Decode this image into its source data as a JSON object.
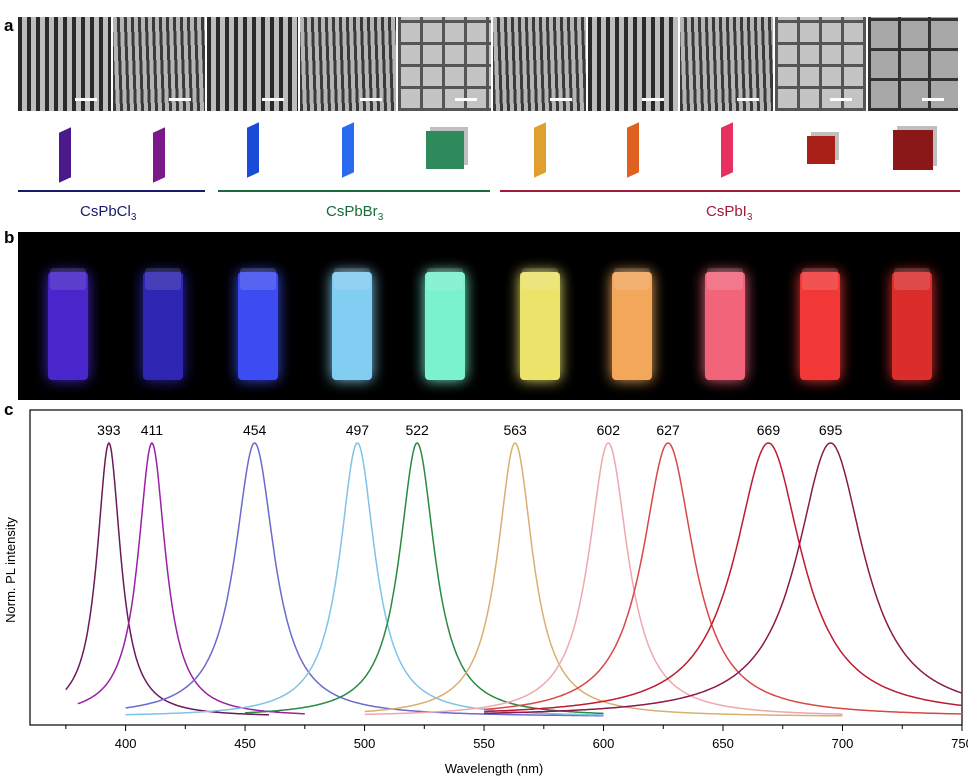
{
  "panel_labels": {
    "a": "a",
    "b": "b",
    "c": "c"
  },
  "panel_a": {
    "tem_images": [
      {
        "morphology": "nanoplatelets",
        "color": "#4a1a8a"
      },
      {
        "morphology": "nanoplatelets",
        "color": "#7a1a8a"
      },
      {
        "morphology": "nanoplatelets",
        "color": "#1a4ad8"
      },
      {
        "morphology": "nanoplatelets",
        "color": "#2a6af0"
      },
      {
        "morphology": "nanocubes",
        "color": "#2e8a5a"
      },
      {
        "morphology": "nanoplatelets",
        "color": "#e0a030"
      },
      {
        "morphology": "nanoplatelets",
        "color": "#e06020"
      },
      {
        "morphology": "nanoplatelets",
        "color": "#e83060"
      },
      {
        "morphology": "nanocubes",
        "color": "#a82018"
      },
      {
        "morphology": "nanocubes",
        "color": "#8a1818"
      }
    ],
    "groups": [
      {
        "name": "CsPbCl",
        "sub": "3",
        "color": "#1a1a6a"
      },
      {
        "name": "CsPbBr",
        "sub": "3",
        "color": "#1a6a3a"
      },
      {
        "name": "CsPbI",
        "sub": "3",
        "color": "#a01a3a"
      }
    ]
  },
  "panel_b": {
    "vial_colors": [
      "#5a30ff",
      "#3a30e0",
      "#4050ff",
      "#8ad8ff",
      "#80ffd8",
      "#f8f070",
      "#ffb060",
      "#ff6a80",
      "#ff3a3a",
      "#e83030"
    ]
  },
  "chart_data": {
    "type": "line",
    "xlabel": "Wavelength (nm)",
    "ylabel": "Norm. PL intensity",
    "xlim": [
      360,
      750
    ],
    "ylim": [
      0,
      1.1
    ],
    "xticks": [
      400,
      450,
      500,
      550,
      600,
      650,
      700,
      750
    ],
    "grid": false,
    "series": [
      {
        "peak": 393,
        "fwhm": 12,
        "range": [
          375,
          460
        ],
        "color": "#6a1a5a",
        "label": "393"
      },
      {
        "peak": 411,
        "fwhm": 14,
        "range": [
          380,
          475
        ],
        "color": "#9a20a8",
        "label": "411"
      },
      {
        "peak": 454,
        "fwhm": 20,
        "range": [
          400,
          600
        ],
        "color": "#6a6ad0",
        "label": "454"
      },
      {
        "peak": 497,
        "fwhm": 18,
        "range": [
          400,
          600
        ],
        "color": "#7ec4e6",
        "label": "497"
      },
      {
        "peak": 522,
        "fwhm": 18,
        "range": [
          450,
          600
        ],
        "color": "#2a8a40",
        "label": "522"
      },
      {
        "peak": 563,
        "fwhm": 18,
        "range": [
          500,
          700
        ],
        "color": "#d8b070",
        "label": "563"
      },
      {
        "peak": 602,
        "fwhm": 20,
        "range": [
          500,
          700
        ],
        "color": "#f0a8b0",
        "label": "602"
      },
      {
        "peak": 627,
        "fwhm": 26,
        "range": [
          550,
          750
        ],
        "color": "#d84848",
        "label": "627"
      },
      {
        "peak": 669,
        "fwhm": 34,
        "range": [
          550,
          750
        ],
        "color": "#c01a30",
        "label": "669"
      },
      {
        "peak": 695,
        "fwhm": 34,
        "range": [
          550,
          750
        ],
        "color": "#8a1a4a",
        "label": "695"
      }
    ]
  }
}
